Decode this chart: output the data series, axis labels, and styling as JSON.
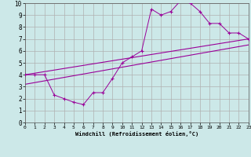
{
  "background_color": "#cce8e8",
  "grid_color": "#b0b0b0",
  "line_color": "#990099",
  "xlabel": "Windchill (Refroidissement éolien,°C)",
  "xlim": [
    0,
    23
  ],
  "ylim": [
    0,
    10
  ],
  "xticks": [
    0,
    1,
    2,
    3,
    4,
    5,
    6,
    7,
    8,
    9,
    10,
    11,
    12,
    13,
    14,
    15,
    16,
    17,
    18,
    19,
    20,
    21,
    22,
    23
  ],
  "yticks": [
    0,
    1,
    2,
    3,
    4,
    5,
    6,
    7,
    8,
    9,
    10
  ],
  "line1_x": [
    0,
    1,
    2,
    3,
    4,
    5,
    6,
    7,
    8,
    9,
    10,
    11,
    12,
    13,
    14,
    15,
    16,
    17,
    18,
    19,
    20,
    21,
    22,
    23
  ],
  "line1_y": [
    4.0,
    4.0,
    4.0,
    2.3,
    2.0,
    1.7,
    1.5,
    2.5,
    2.5,
    3.7,
    5.0,
    5.5,
    6.0,
    9.5,
    9.0,
    9.3,
    10.2,
    10.0,
    9.3,
    8.3,
    8.3,
    7.5,
    7.5,
    7.0
  ],
  "line2_x": [
    0,
    23
  ],
  "line2_y": [
    4.0,
    7.0
  ],
  "line3_x": [
    0,
    23
  ],
  "line3_y": [
    3.2,
    6.5
  ]
}
